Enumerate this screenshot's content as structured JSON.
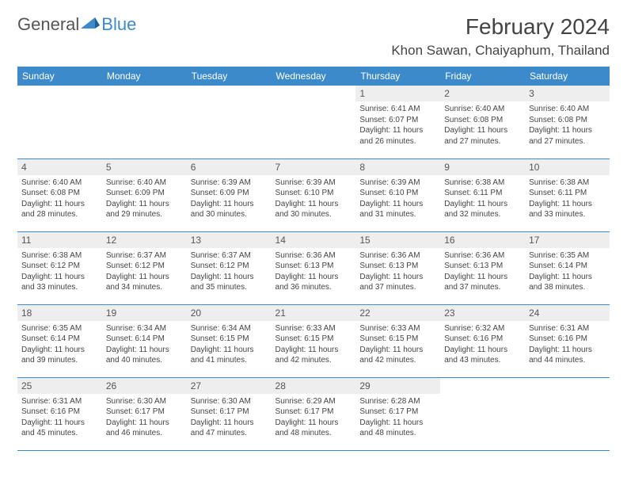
{
  "logo": {
    "text1": "General",
    "text2": "Blue"
  },
  "title": "February 2024",
  "location": "Khon Sawan, Chaiyaphum, Thailand",
  "header_row_bg": "#3c8ac9",
  "header_row_fg": "#ffffff",
  "daynum_bg": "#eeeeee",
  "cell_border": "#3c8ac9",
  "columns": [
    "Sunday",
    "Monday",
    "Tuesday",
    "Wednesday",
    "Thursday",
    "Friday",
    "Saturday"
  ],
  "weeks": [
    [
      null,
      null,
      null,
      null,
      {
        "n": "1",
        "sunrise": "6:41 AM",
        "sunset": "6:07 PM",
        "day_h": 11,
        "day_m": 26
      },
      {
        "n": "2",
        "sunrise": "6:40 AM",
        "sunset": "6:08 PM",
        "day_h": 11,
        "day_m": 27
      },
      {
        "n": "3",
        "sunrise": "6:40 AM",
        "sunset": "6:08 PM",
        "day_h": 11,
        "day_m": 27
      }
    ],
    [
      {
        "n": "4",
        "sunrise": "6:40 AM",
        "sunset": "6:08 PM",
        "day_h": 11,
        "day_m": 28
      },
      {
        "n": "5",
        "sunrise": "6:40 AM",
        "sunset": "6:09 PM",
        "day_h": 11,
        "day_m": 29
      },
      {
        "n": "6",
        "sunrise": "6:39 AM",
        "sunset": "6:09 PM",
        "day_h": 11,
        "day_m": 30
      },
      {
        "n": "7",
        "sunrise": "6:39 AM",
        "sunset": "6:10 PM",
        "day_h": 11,
        "day_m": 30
      },
      {
        "n": "8",
        "sunrise": "6:39 AM",
        "sunset": "6:10 PM",
        "day_h": 11,
        "day_m": 31
      },
      {
        "n": "9",
        "sunrise": "6:38 AM",
        "sunset": "6:11 PM",
        "day_h": 11,
        "day_m": 32
      },
      {
        "n": "10",
        "sunrise": "6:38 AM",
        "sunset": "6:11 PM",
        "day_h": 11,
        "day_m": 33
      }
    ],
    [
      {
        "n": "11",
        "sunrise": "6:38 AM",
        "sunset": "6:12 PM",
        "day_h": 11,
        "day_m": 33
      },
      {
        "n": "12",
        "sunrise": "6:37 AM",
        "sunset": "6:12 PM",
        "day_h": 11,
        "day_m": 34
      },
      {
        "n": "13",
        "sunrise": "6:37 AM",
        "sunset": "6:12 PM",
        "day_h": 11,
        "day_m": 35
      },
      {
        "n": "14",
        "sunrise": "6:36 AM",
        "sunset": "6:13 PM",
        "day_h": 11,
        "day_m": 36
      },
      {
        "n": "15",
        "sunrise": "6:36 AM",
        "sunset": "6:13 PM",
        "day_h": 11,
        "day_m": 37
      },
      {
        "n": "16",
        "sunrise": "6:36 AM",
        "sunset": "6:13 PM",
        "day_h": 11,
        "day_m": 37
      },
      {
        "n": "17",
        "sunrise": "6:35 AM",
        "sunset": "6:14 PM",
        "day_h": 11,
        "day_m": 38
      }
    ],
    [
      {
        "n": "18",
        "sunrise": "6:35 AM",
        "sunset": "6:14 PM",
        "day_h": 11,
        "day_m": 39
      },
      {
        "n": "19",
        "sunrise": "6:34 AM",
        "sunset": "6:14 PM",
        "day_h": 11,
        "day_m": 40
      },
      {
        "n": "20",
        "sunrise": "6:34 AM",
        "sunset": "6:15 PM",
        "day_h": 11,
        "day_m": 41
      },
      {
        "n": "21",
        "sunrise": "6:33 AM",
        "sunset": "6:15 PM",
        "day_h": 11,
        "day_m": 42
      },
      {
        "n": "22",
        "sunrise": "6:33 AM",
        "sunset": "6:15 PM",
        "day_h": 11,
        "day_m": 42
      },
      {
        "n": "23",
        "sunrise": "6:32 AM",
        "sunset": "6:16 PM",
        "day_h": 11,
        "day_m": 43
      },
      {
        "n": "24",
        "sunrise": "6:31 AM",
        "sunset": "6:16 PM",
        "day_h": 11,
        "day_m": 44
      }
    ],
    [
      {
        "n": "25",
        "sunrise": "6:31 AM",
        "sunset": "6:16 PM",
        "day_h": 11,
        "day_m": 45
      },
      {
        "n": "26",
        "sunrise": "6:30 AM",
        "sunset": "6:17 PM",
        "day_h": 11,
        "day_m": 46
      },
      {
        "n": "27",
        "sunrise": "6:30 AM",
        "sunset": "6:17 PM",
        "day_h": 11,
        "day_m": 47
      },
      {
        "n": "28",
        "sunrise": "6:29 AM",
        "sunset": "6:17 PM",
        "day_h": 11,
        "day_m": 48
      },
      {
        "n": "29",
        "sunrise": "6:28 AM",
        "sunset": "6:17 PM",
        "day_h": 11,
        "day_m": 48
      },
      null,
      null
    ]
  ],
  "labels": {
    "sunrise": "Sunrise:",
    "sunset": "Sunset:",
    "daylight": "Daylight:",
    "hours": "hours",
    "and": "and",
    "minutes": "minutes."
  }
}
